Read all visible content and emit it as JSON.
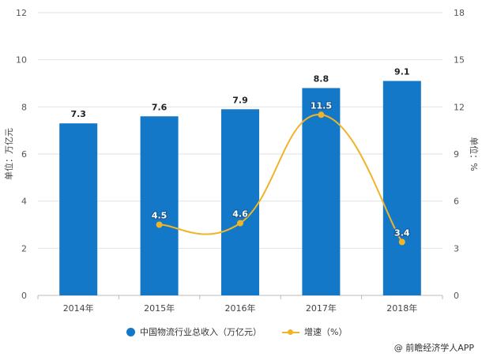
{
  "chart_data": {
    "type": "bar",
    "categories": [
      "2014年",
      "2015年",
      "2016年",
      "2017年",
      "2018年"
    ],
    "series": [
      {
        "name": "中国物流行业总收入（万亿元）",
        "type": "bar",
        "axis": "left",
        "values": [
          7.3,
          7.6,
          7.9,
          8.8,
          9.1
        ],
        "labels": [
          "7.3",
          "7.6",
          "7.9",
          "8.8",
          "9.1"
        ]
      },
      {
        "name": "增速（%）",
        "type": "line",
        "axis": "right",
        "values": [
          null,
          4.5,
          4.6,
          11.5,
          3.4
        ],
        "labels": [
          "",
          "4.5",
          "4.6",
          "11.5",
          "3.4"
        ]
      }
    ],
    "ylabel": "单位：万亿元",
    "y2label": "单位：%",
    "ylim": [
      0,
      12
    ],
    "y2lim": [
      0,
      18
    ],
    "yticks": [
      "0",
      "2",
      "4",
      "6",
      "8",
      "10",
      "12"
    ],
    "y2ticks": [
      "0",
      "3",
      "6",
      "9",
      "12",
      "15",
      "18"
    ],
    "grid": true,
    "legend_position": "bottom",
    "colors": {
      "bar": "#1478c8",
      "line": "#f0b429"
    }
  },
  "legend": {
    "bar_label": "中国物流行业总收入（万亿元）",
    "line_label": "增速（%）"
  },
  "source": "@ 前瞻经济学人APP"
}
